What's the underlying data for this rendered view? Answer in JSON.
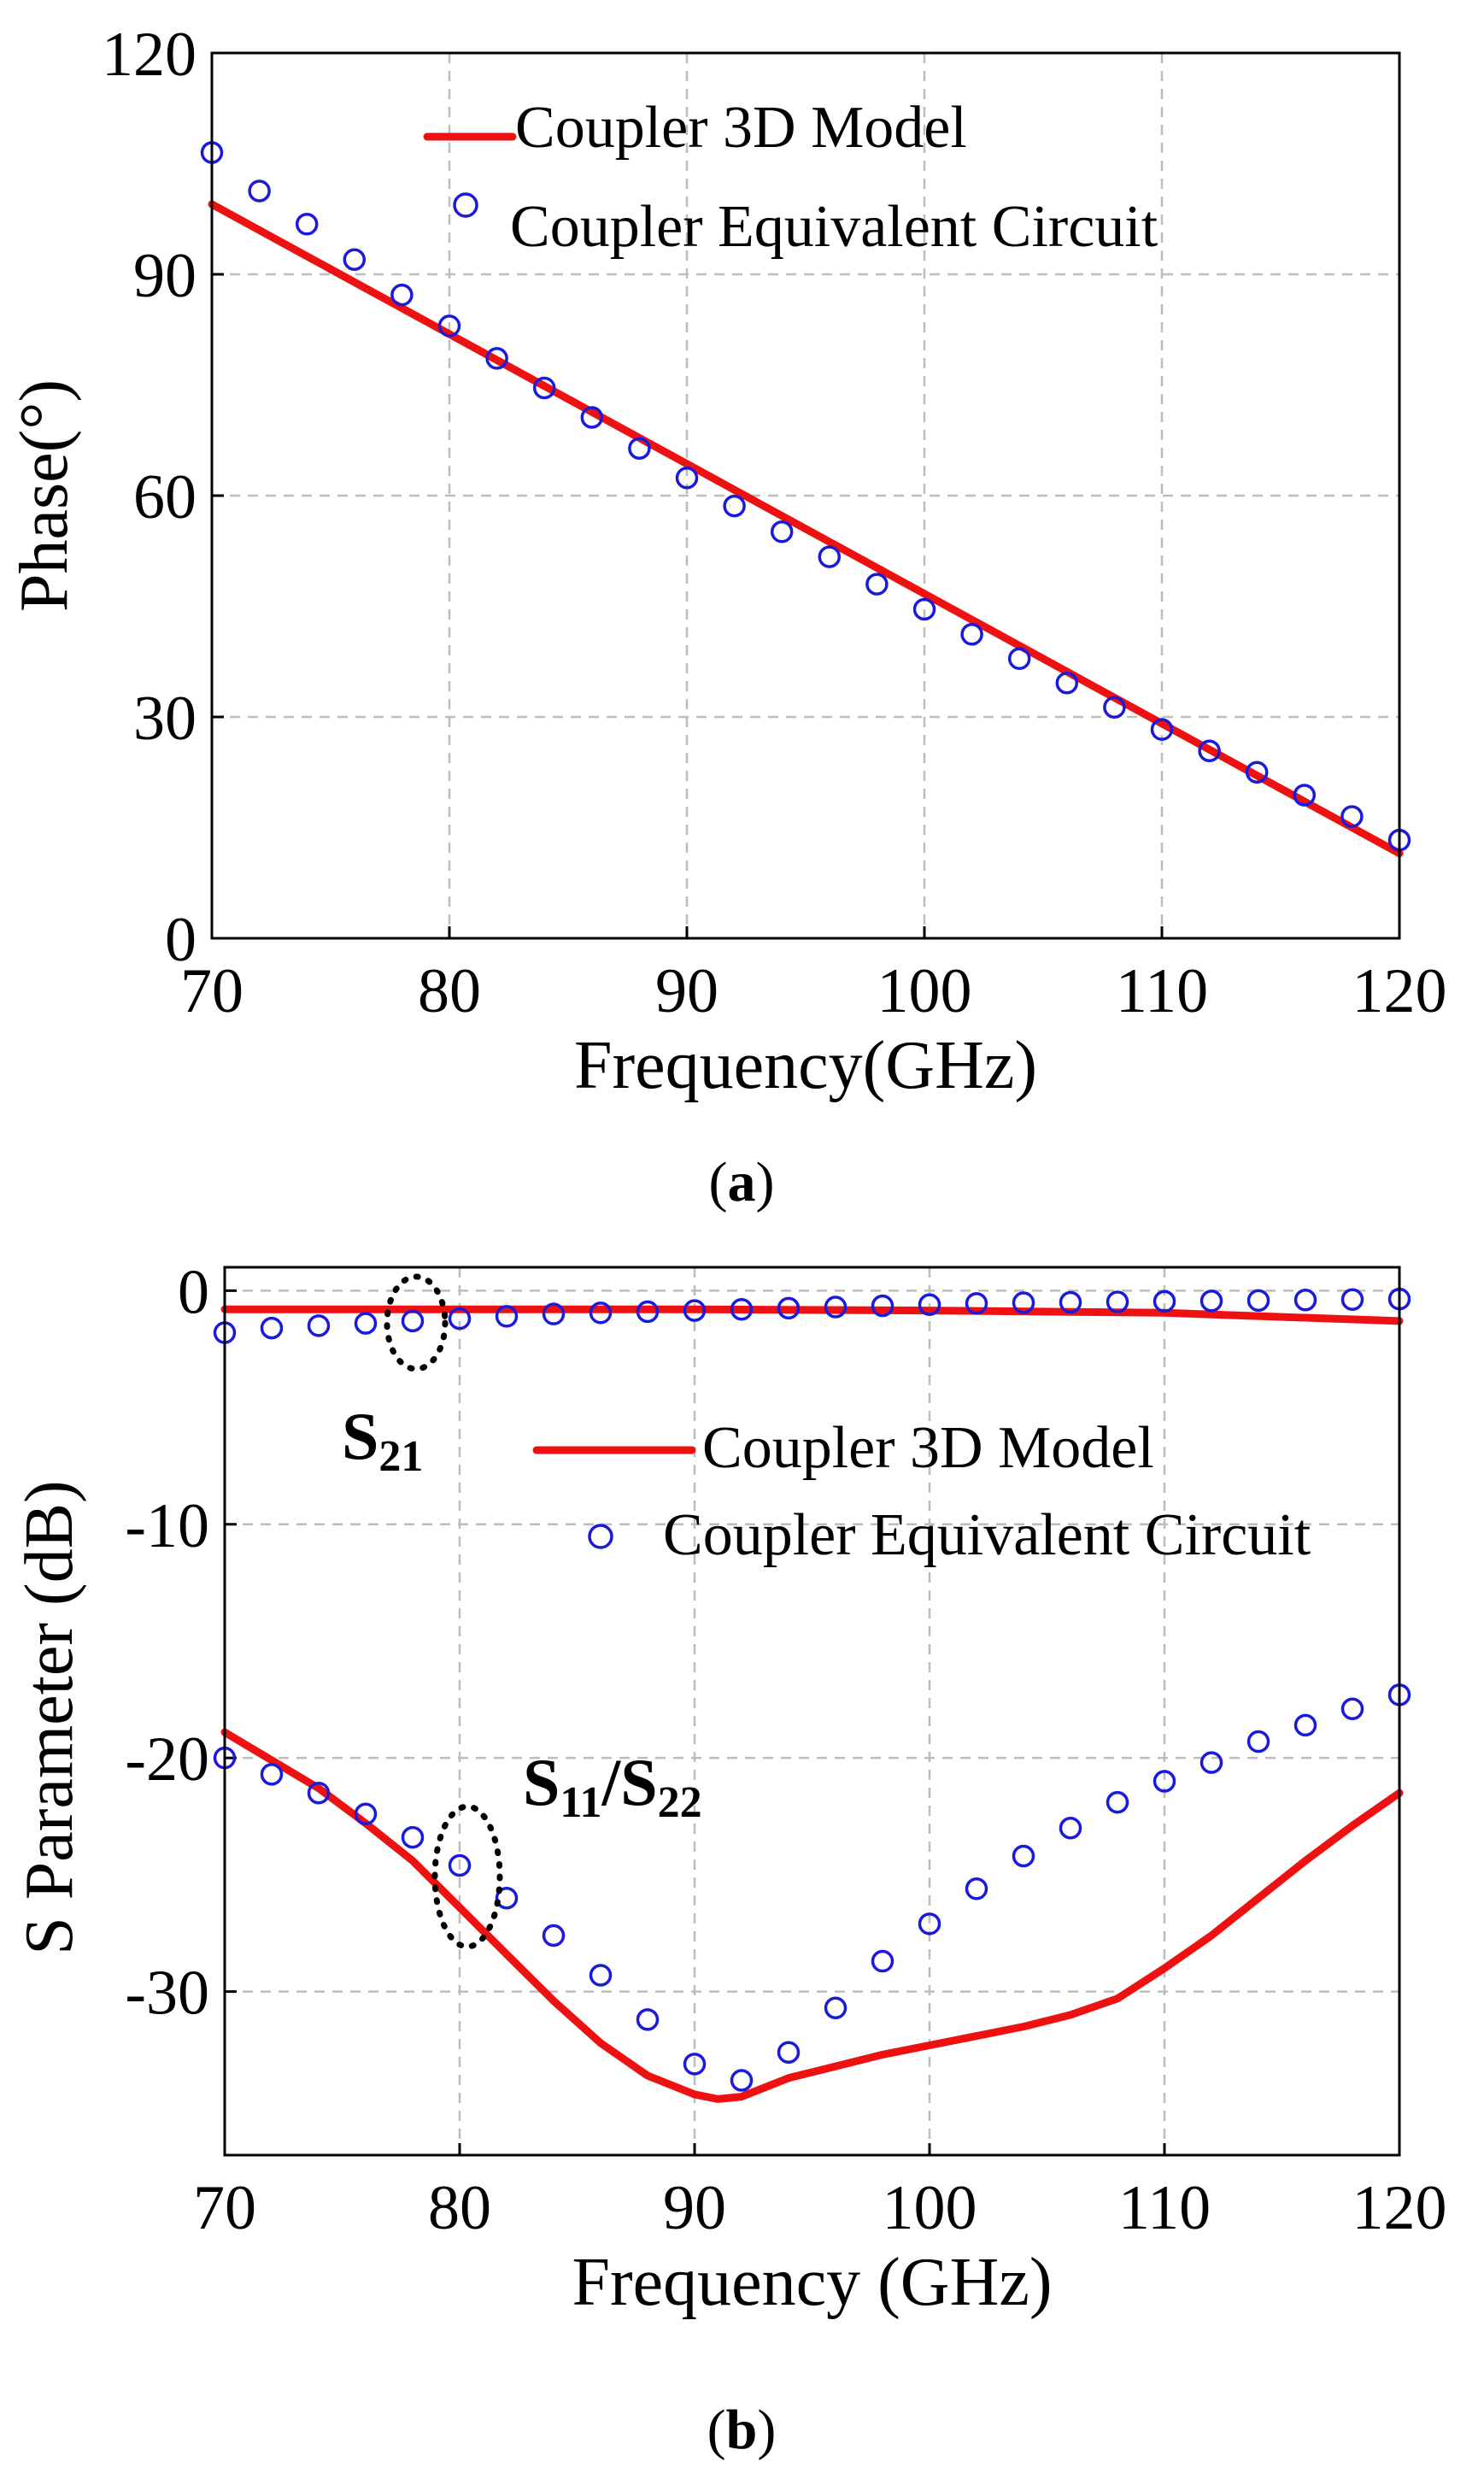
{
  "chart_data": [
    {
      "type": "line",
      "panel": "a",
      "caption": "(a)",
      "caption_letter": "a",
      "xlabel": "Frequency(GHz)",
      "ylabel": "Phase(°)",
      "xlim": [
        70,
        120
      ],
      "ylim": [
        0,
        120
      ],
      "xticks": [
        70,
        80,
        90,
        100,
        110,
        120
      ],
      "yticks": [
        0,
        30,
        60,
        90,
        120
      ],
      "grid": true,
      "legend_position": "top-right",
      "series": [
        {
          "name": "Coupler 3D Model",
          "style": "line",
          "color": "#ee1111",
          "x": [
            70,
            120
          ],
          "y": [
            99.5,
            11.5
          ]
        },
        {
          "name": "Coupler Equivalent Circuit",
          "style": "marker-circle",
          "color": "#1a1adf",
          "x": [
            70,
            72,
            74,
            76,
            78,
            80,
            82,
            84,
            86,
            88,
            90,
            92,
            94,
            96,
            98,
            100,
            102,
            104,
            106,
            108,
            110,
            112,
            114,
            116,
            118,
            120
          ],
          "y": [
            106.5,
            101.3,
            96.8,
            92.0,
            87.2,
            83.0,
            78.6,
            74.6,
            70.6,
            66.4,
            62.4,
            58.6,
            55.1,
            51.7,
            48.0,
            44.6,
            41.2,
            37.9,
            34.6,
            31.3,
            28.3,
            25.4,
            22.5,
            19.4,
            16.5,
            13.3
          ]
        }
      ]
    },
    {
      "type": "line",
      "panel": "b",
      "caption": "(b)",
      "caption_letter": "b",
      "xlabel": "Frequency (GHz)",
      "ylabel": "S Parameter (dB)",
      "xlim": [
        70,
        120
      ],
      "ylim": [
        -37,
        1
      ],
      "xticks": [
        70,
        80,
        90,
        100,
        110,
        120
      ],
      "yticks": [
        0,
        -10,
        -20,
        -30
      ],
      "grid": true,
      "legend_position": "top-right",
      "annotations": [
        {
          "label": "S",
          "sub": "21",
          "text": "S21"
        },
        {
          "label": "S",
          "sub": "11",
          "label2": "/S",
          "sub2": "22",
          "text": "S11/S22"
        }
      ],
      "series": [
        {
          "name": "Coupler 3D Model",
          "group": "S21",
          "style": "line",
          "color": "#ee1111",
          "x": [
            70,
            80,
            90,
            100,
            110,
            120
          ],
          "y": [
            -0.8,
            -0.8,
            -0.8,
            -0.85,
            -0.95,
            -1.3
          ]
        },
        {
          "name": "Coupler Equivalent Circuit",
          "group": "S21",
          "style": "marker-circle",
          "color": "#1a1adf",
          "x": [
            70,
            72,
            74,
            76,
            78,
            80,
            82,
            84,
            86,
            88,
            90,
            92,
            94,
            96,
            98,
            100,
            102,
            104,
            106,
            108,
            110,
            112,
            114,
            116,
            118,
            120
          ],
          "y": [
            -1.8,
            -1.6,
            -1.5,
            -1.4,
            -1.3,
            -1.2,
            -1.1,
            -1.0,
            -0.95,
            -0.9,
            -0.85,
            -0.8,
            -0.75,
            -0.7,
            -0.65,
            -0.6,
            -0.55,
            -0.52,
            -0.5,
            -0.48,
            -0.46,
            -0.44,
            -0.42,
            -0.4,
            -0.38,
            -0.36
          ]
        },
        {
          "name": "Coupler 3D Model",
          "group": "S11/S22",
          "style": "line",
          "color": "#ee1111",
          "x": [
            70,
            72,
            74,
            76,
            78,
            80,
            82,
            84,
            86,
            88,
            90,
            91,
            92,
            94,
            96,
            98,
            100,
            102,
            104,
            106,
            108,
            110,
            112,
            114,
            116,
            118,
            120
          ],
          "y": [
            -18.9,
            -20.1,
            -21.3,
            -22.8,
            -24.4,
            -26.4,
            -28.4,
            -30.4,
            -32.2,
            -33.6,
            -34.4,
            -34.6,
            -34.5,
            -33.7,
            -33.2,
            -32.7,
            -32.3,
            -31.9,
            -31.5,
            -31.0,
            -30.3,
            -29.0,
            -27.6,
            -26.0,
            -24.4,
            -22.9,
            -21.5
          ]
        },
        {
          "name": "Coupler Equivalent Circuit",
          "group": "S11/S22",
          "style": "marker-circle",
          "color": "#1a1adf",
          "x": [
            70,
            72,
            74,
            76,
            78,
            80,
            82,
            84,
            86,
            88,
            90,
            92,
            94,
            96,
            98,
            100,
            102,
            104,
            106,
            108,
            110,
            112,
            114,
            116,
            118,
            120
          ],
          "y": [
            -20.0,
            -20.7,
            -21.5,
            -22.4,
            -23.4,
            -24.6,
            -26.0,
            -27.6,
            -29.3,
            -31.2,
            -33.1,
            -33.8,
            -32.6,
            -30.7,
            -28.7,
            -27.1,
            -25.6,
            -24.2,
            -23.0,
            -21.9,
            -21.0,
            -20.2,
            -19.3,
            -18.6,
            -17.9,
            -17.3
          ]
        }
      ]
    }
  ]
}
